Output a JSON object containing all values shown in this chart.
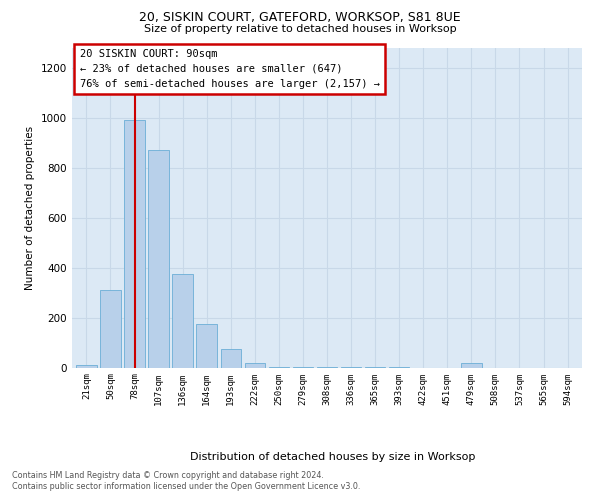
{
  "title1": "20, SISKIN COURT, GATEFORD, WORKSOP, S81 8UE",
  "title2": "Size of property relative to detached houses in Worksop",
  "xlabel": "Distribution of detached houses by size in Worksop",
  "ylabel": "Number of detached properties",
  "footer1": "Contains HM Land Registry data © Crown copyright and database right 2024.",
  "footer2": "Contains public sector information licensed under the Open Government Licence v3.0.",
  "annotation_title": "20 SISKIN COURT: 90sqm",
  "annotation_line1": "← 23% of detached houses are smaller (647)",
  "annotation_line2": "76% of semi-detached houses are larger (2,157) →",
  "bar_categories": [
    "21sqm",
    "50sqm",
    "78sqm",
    "107sqm",
    "136sqm",
    "164sqm",
    "193sqm",
    "222sqm",
    "250sqm",
    "279sqm",
    "308sqm",
    "336sqm",
    "365sqm",
    "393sqm",
    "422sqm",
    "451sqm",
    "479sqm",
    "508sqm",
    "537sqm",
    "565sqm",
    "594sqm"
  ],
  "bar_values": [
    10,
    310,
    990,
    870,
    375,
    175,
    75,
    20,
    3,
    2,
    2,
    1,
    1,
    1,
    0,
    0,
    18,
    0,
    0,
    0,
    0
  ],
  "bar_color": "#b8d0ea",
  "bar_edgecolor": "#6baed6",
  "vline_color": "#cc0000",
  "vline_bar_index": 2,
  "annotation_box_edgecolor": "#cc0000",
  "plot_bg_color": "#dce9f5",
  "bg_color": "#ffffff",
  "grid_color": "#c8d8e8",
  "ylim": [
    0,
    1280
  ],
  "yticks": [
    0,
    200,
    400,
    600,
    800,
    1000,
    1200
  ]
}
